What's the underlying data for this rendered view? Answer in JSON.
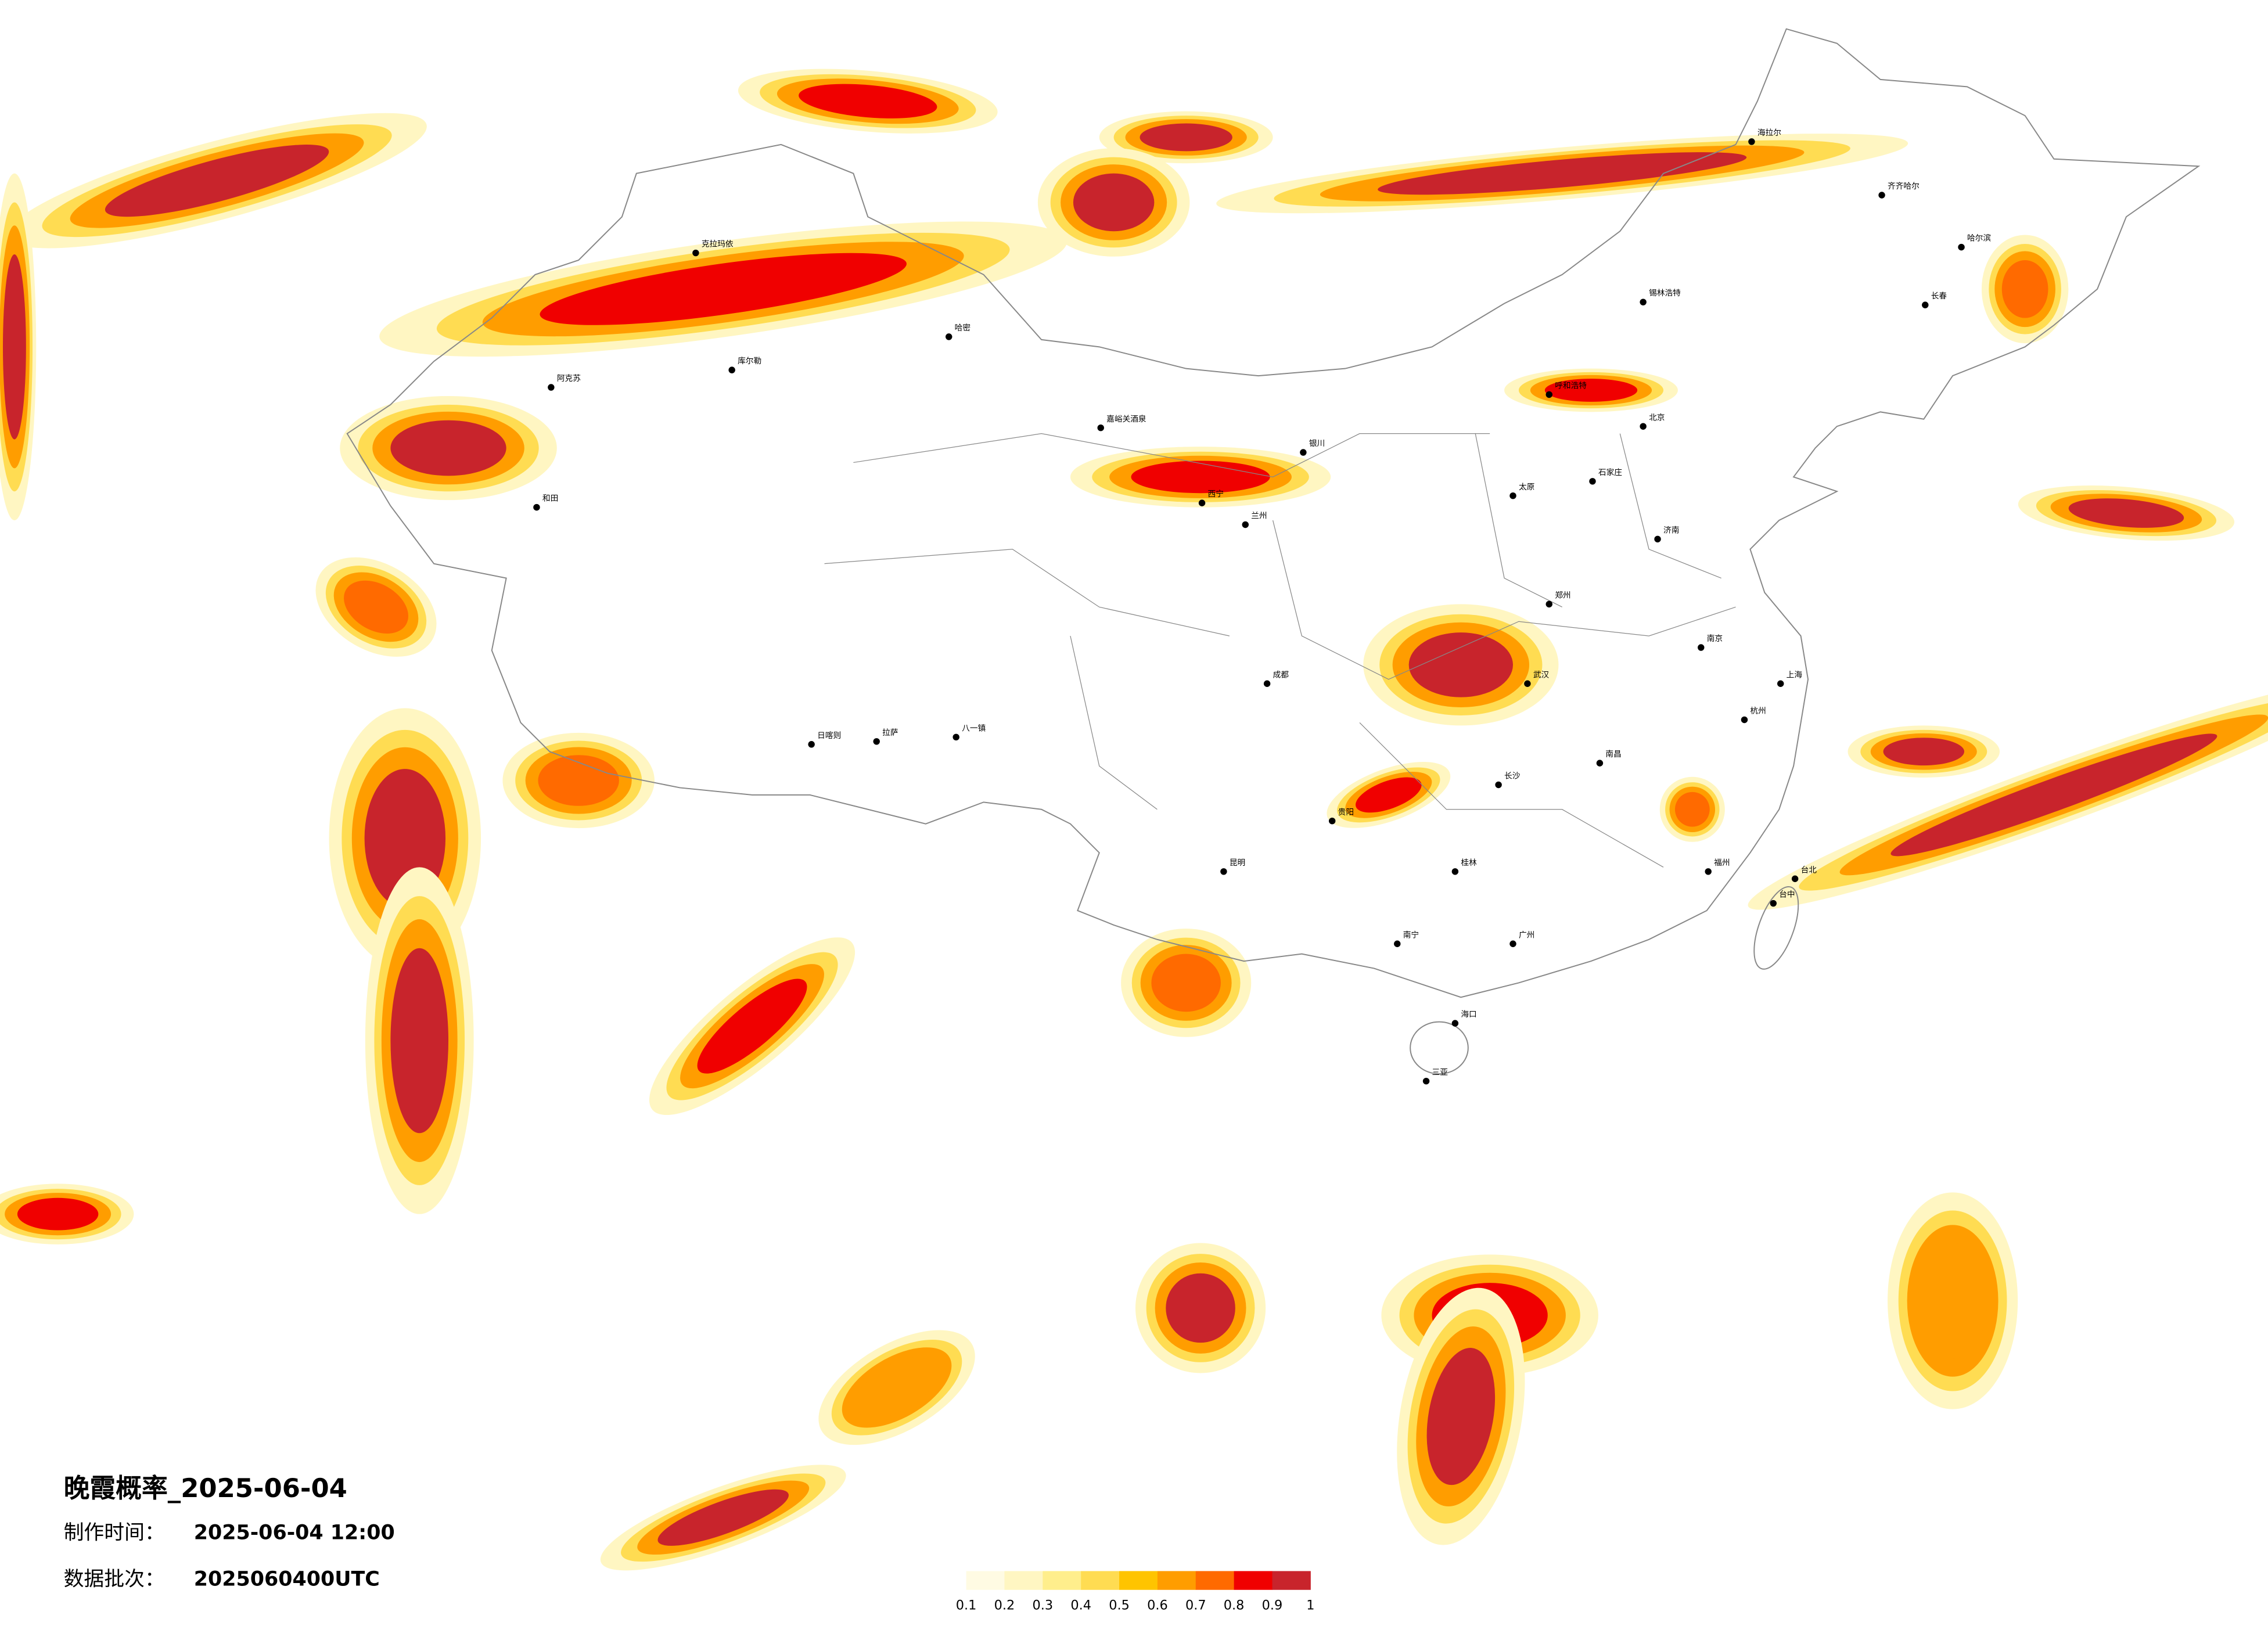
{
  "title": "晚霞概率_2025-06-04",
  "produced_label": "制作时间：",
  "produced": "2025-06-04 12:00",
  "batch_label": "数据批次：",
  "batch": "2025060400UTC",
  "legend": {
    "ticks": [
      0.1,
      0.2,
      0.3,
      0.4,
      0.5,
      0.6,
      0.7,
      0.8,
      0.9,
      1
    ],
    "colors": [
      "#fffbe3",
      "#fff6c2",
      "#ffee8c",
      "#ffdc52",
      "#ffc400",
      "#ff9d00",
      "#ff6a00",
      "#f00000",
      "#c8242c"
    ]
  },
  "cities": [
    "克拉玛依",
    "阿克苏",
    "库尔勒",
    "和田",
    "哈密",
    "嘉峪关酒泉",
    "日喀则",
    "拉萨",
    "八一镇",
    "锡林浩特",
    "呼和浩特",
    "海拉尔",
    "齐齐哈尔",
    "哈尔滨",
    "长春",
    "北京",
    "石家庄",
    "郑州",
    "武汉",
    "长沙",
    "南昌",
    "福州",
    "南宁",
    "桂林",
    "昆明",
    "贵阳",
    "成都",
    "西宁",
    "兰州",
    "银川",
    "太原",
    "济南",
    "南京",
    "上海",
    "杭州",
    "广州",
    "海口",
    "三亚",
    "台北",
    "台中"
  ]
}
